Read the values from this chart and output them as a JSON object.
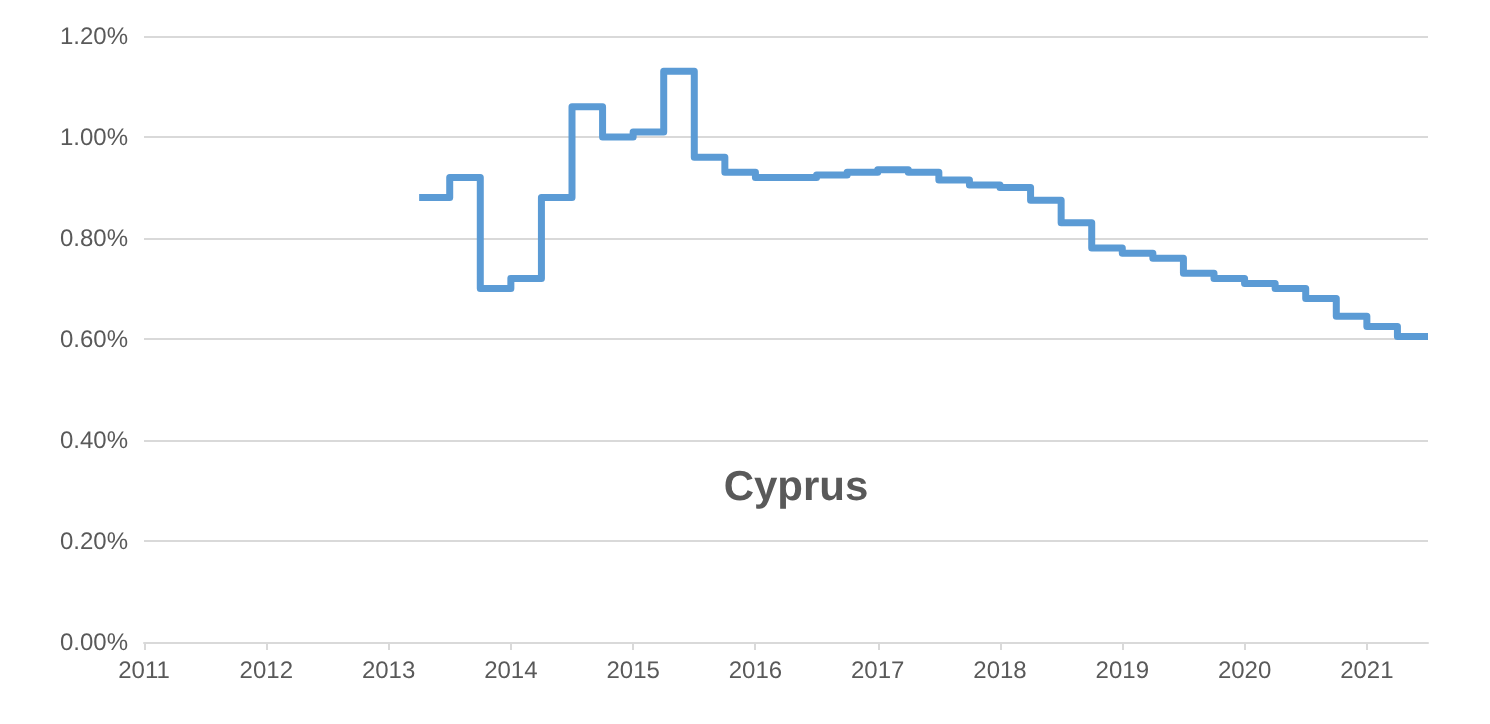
{
  "chart_data": {
    "type": "step",
    "title": "Cyprus",
    "x": [
      2013.25,
      2013.5,
      2013.75,
      2014.0,
      2014.25,
      2014.5,
      2014.75,
      2015.0,
      2015.25,
      2015.5,
      2015.75,
      2016.0,
      2016.25,
      2016.5,
      2016.75,
      2017.0,
      2017.25,
      2017.5,
      2017.75,
      2018.0,
      2018.25,
      2018.5,
      2018.75,
      2019.0,
      2019.25,
      2019.5,
      2019.75,
      2020.0,
      2020.25,
      2020.5,
      2020.75,
      2021.0,
      2021.25,
      2021.5
    ],
    "series": [
      {
        "color": "#5b9bd5",
        "values": [
          0.88,
          0.92,
          0.7,
          0.72,
          0.88,
          1.06,
          1.0,
          1.01,
          1.13,
          0.96,
          0.93,
          0.92,
          0.92,
          0.925,
          0.93,
          0.935,
          0.93,
          0.915,
          0.905,
          0.9,
          0.875,
          0.83,
          0.78,
          0.77,
          0.76,
          0.73,
          0.72,
          0.71,
          0.7,
          0.68,
          0.645,
          0.625,
          0.605,
          0.605
        ]
      }
    ],
    "xlim": [
      2011,
      2021.5
    ],
    "xticks": [
      2011,
      2012,
      2013,
      2014,
      2015,
      2016,
      2017,
      2018,
      2019,
      2020,
      2021
    ],
    "ylim": [
      0,
      1.2
    ],
    "yticks": [
      {
        "value": 0,
        "label": "0.00%"
      },
      {
        "value": 0.2,
        "label": "0.20%"
      },
      {
        "value": 0.4,
        "label": "0.40%"
      },
      {
        "value": 0.6,
        "label": "0.60%"
      },
      {
        "value": 0.8,
        "label": "0.80%"
      },
      {
        "value": 1.0,
        "label": "1.00%"
      },
      {
        "value": 1.2,
        "label": "1.20%"
      }
    ],
    "grid": "y",
    "marker": "none",
    "line_style": "solid"
  }
}
